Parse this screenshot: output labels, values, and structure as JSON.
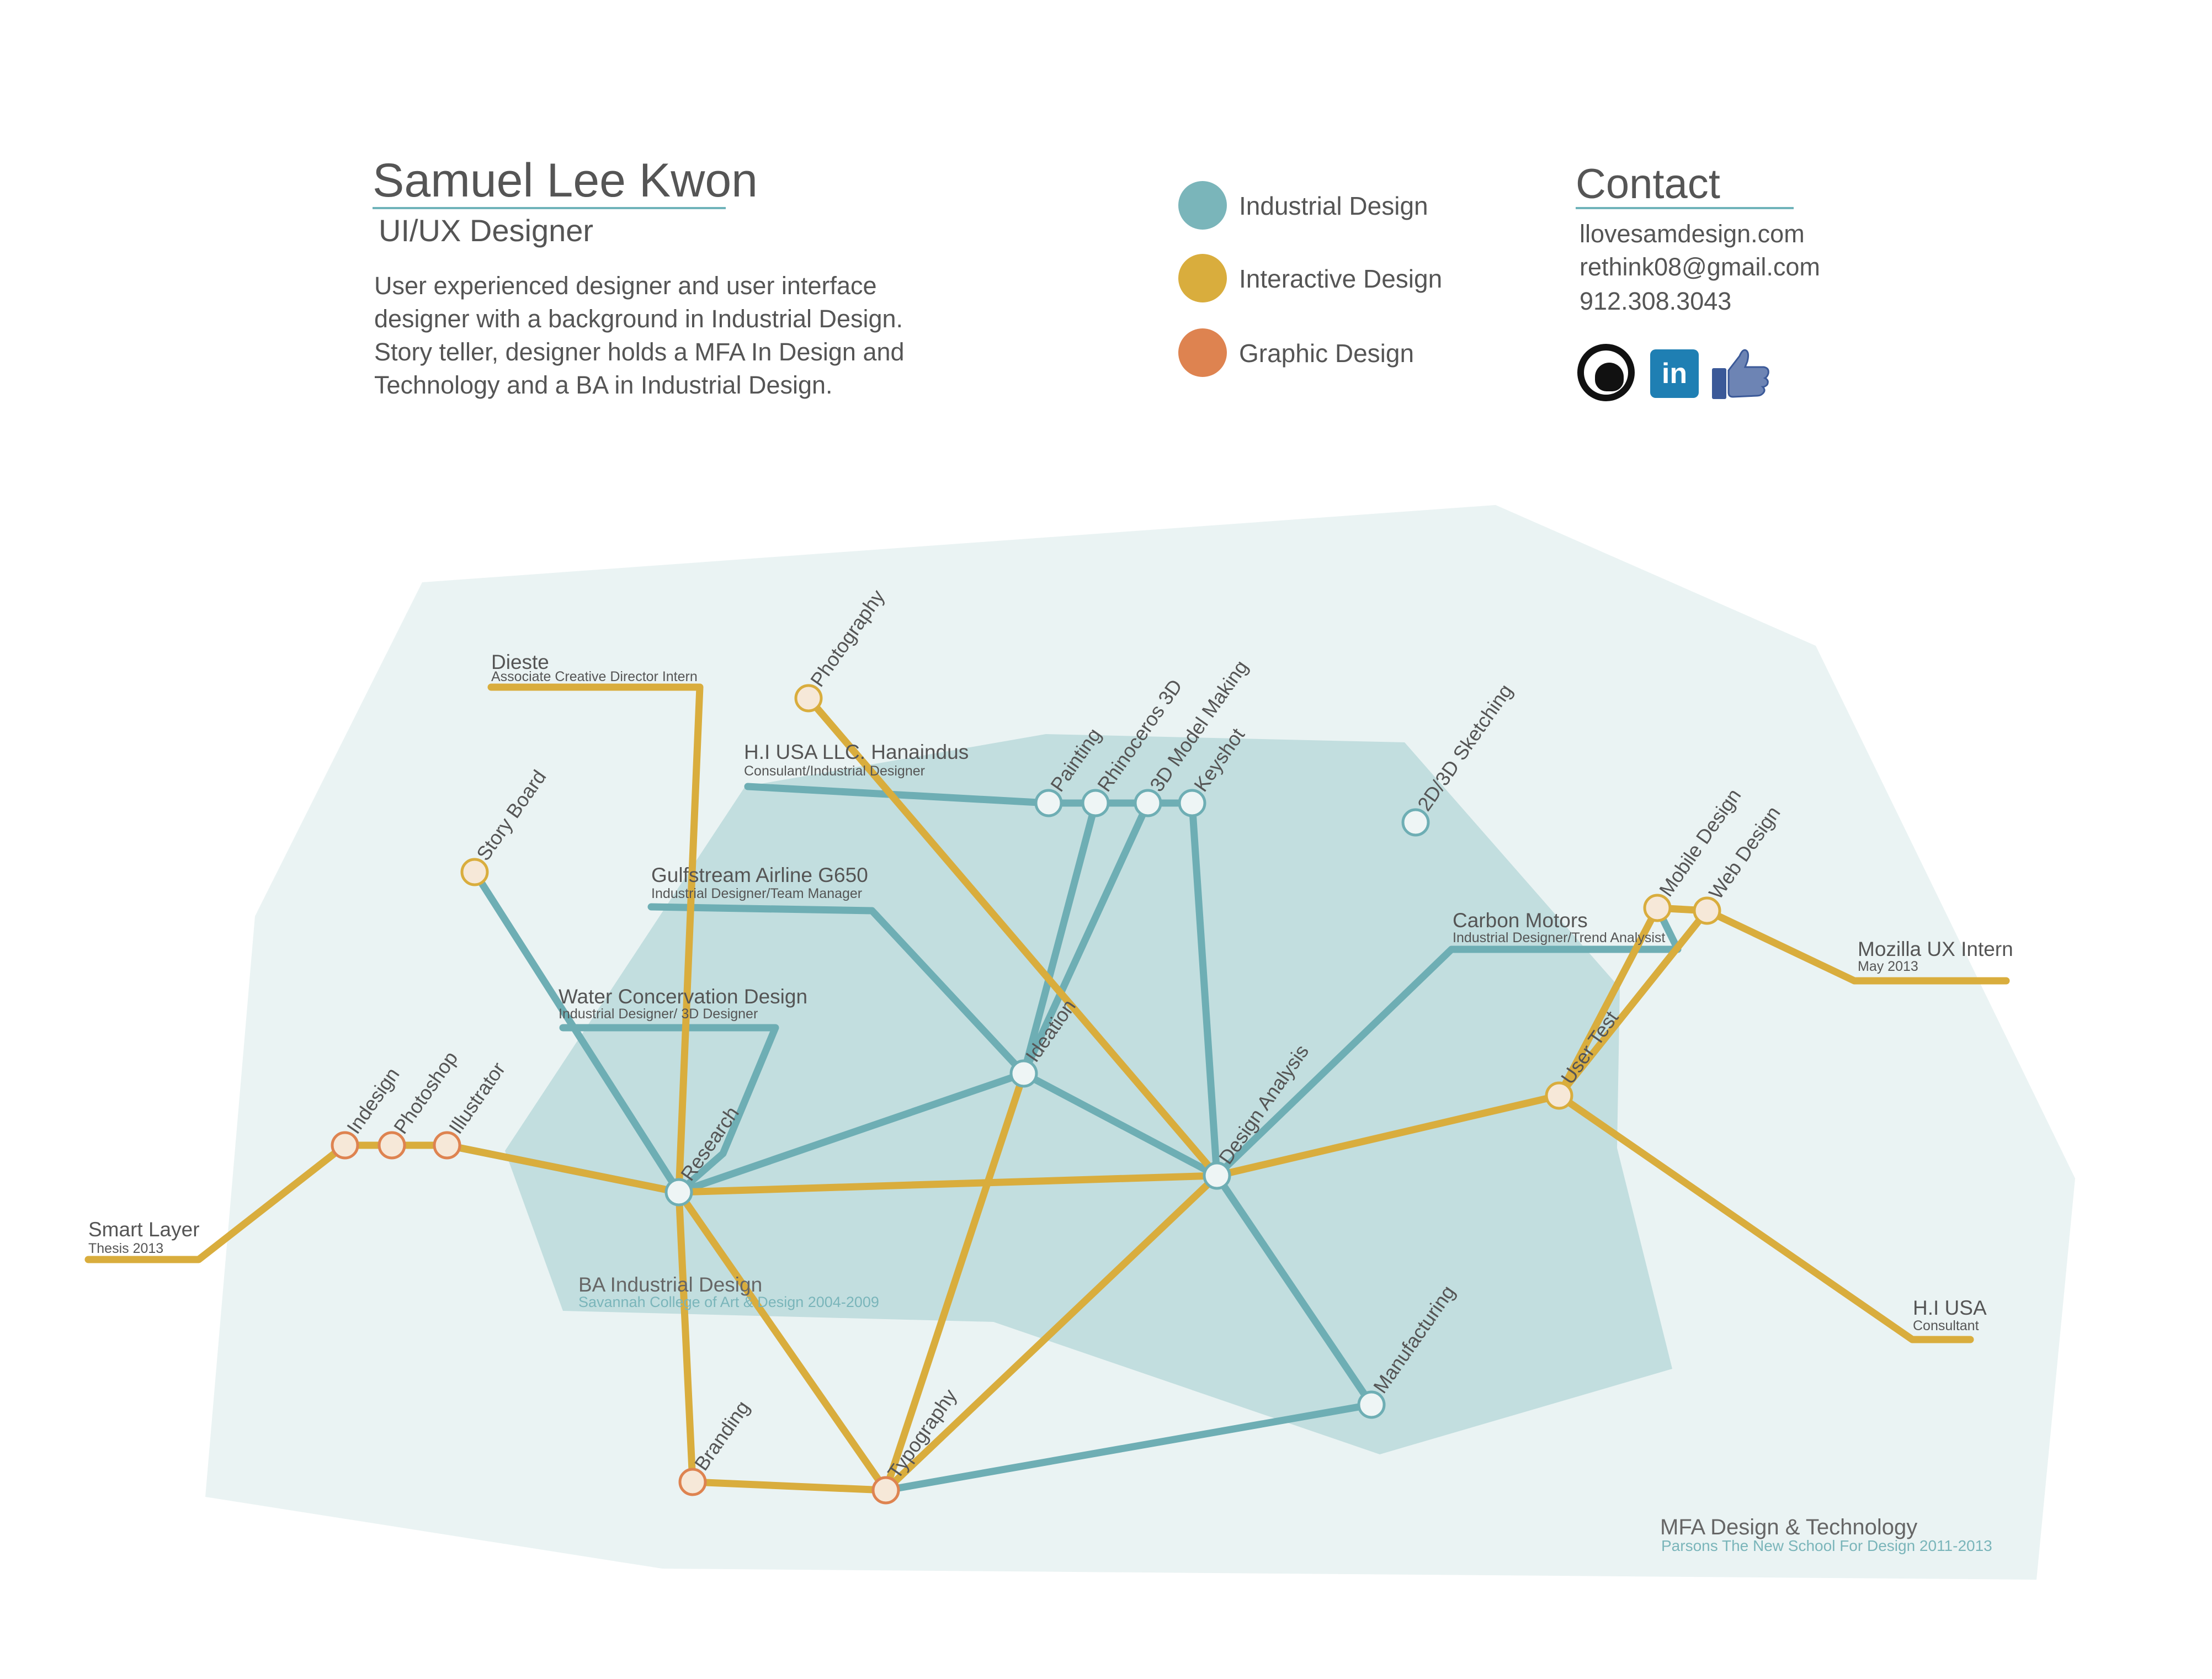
{
  "header": {
    "name": "Samuel Lee Kwon",
    "role": "UI/UX Designer",
    "bio_lines": [
      "User experienced designer and user interface",
      "designer with a background in Industrial Design.",
      "Story teller, designer holds a MFA In Design and",
      "Technology and a BA in Industrial Design."
    ]
  },
  "legend": [
    {
      "label": "Industrial Design",
      "color": "#7ab5ba"
    },
    {
      "label": "Interactive Design",
      "color": "#d9ad3d"
    },
    {
      "label": "Graphic Design",
      "color": "#de8350"
    }
  ],
  "contact": {
    "title": "Contact",
    "website": "llovesamdesign.com",
    "email": "rethink08@gmail.com",
    "phone": "912.308.3043",
    "social_icons": [
      "github-icon",
      "linkedin-icon",
      "facebook-like-icon"
    ],
    "linkedin_glyph": "in"
  },
  "colors": {
    "industrial": "#6eaeb4",
    "interactive": "#d9ad3d",
    "graphic": "#de8350",
    "outer_region": "#eaf3f3",
    "inner_region": "#c2dedf"
  },
  "regions": {
    "ba": {
      "title": "BA Industrial Design",
      "subtitle": "Savannah College of Art & Design 2004-2009"
    },
    "mfa": {
      "title": "MFA Design & Technology",
      "subtitle": "Parsons The New School For Design 2011-2013"
    }
  },
  "nodes": [
    {
      "id": "photography",
      "label": "Photography",
      "type": "interactive"
    },
    {
      "id": "storyboard",
      "label": "Story Board",
      "type": "interactive"
    },
    {
      "id": "painting",
      "label": "Painting",
      "type": "industrial"
    },
    {
      "id": "rhino",
      "label": "Rhinoceros 3D",
      "type": "industrial"
    },
    {
      "id": "model",
      "label": "3D Model Making",
      "type": "industrial"
    },
    {
      "id": "keyshot",
      "label": "Keyshot",
      "type": "industrial"
    },
    {
      "id": "sketching",
      "label": "2D/3D Sketching",
      "type": "industrial"
    },
    {
      "id": "ideation",
      "label": "Ideation",
      "type": "industrial"
    },
    {
      "id": "research",
      "label": "Research",
      "type": "industrial"
    },
    {
      "id": "analysis",
      "label": "Design Analysis",
      "type": "industrial"
    },
    {
      "id": "manufacturing",
      "label": "Manufacturing",
      "type": "industrial"
    },
    {
      "id": "usertest",
      "label": "User Test",
      "type": "interactive"
    },
    {
      "id": "mobile",
      "label": "Mobile Design",
      "type": "interactive"
    },
    {
      "id": "web",
      "label": "Web Design",
      "type": "interactive"
    },
    {
      "id": "indesign",
      "label": "Indesign",
      "type": "graphic"
    },
    {
      "id": "photoshop",
      "label": "Photoshop",
      "type": "graphic"
    },
    {
      "id": "illustrator",
      "label": "Illustrator",
      "type": "graphic"
    },
    {
      "id": "branding",
      "label": "Branding",
      "type": "graphic"
    },
    {
      "id": "typography",
      "label": "Typography",
      "type": "graphic"
    }
  ],
  "experience": [
    {
      "id": "dieste",
      "title": "Dieste",
      "subtitle": "Associate Creative Director Intern"
    },
    {
      "id": "hi-usa-llc",
      "title": "H.I USA LLC. Hanaindus",
      "subtitle": "Consulant/Industrial Designer"
    },
    {
      "id": "gulfstream",
      "title": "Gulfstream Airline G650",
      "subtitle": "Industrial Designer/Team Manager"
    },
    {
      "id": "water",
      "title": "Water Concervation Design",
      "subtitle": "Industrial Designer/ 3D Designer"
    },
    {
      "id": "carbon",
      "title": "Carbon Motors",
      "subtitle": "Industrial Designer/Trend Analysist"
    },
    {
      "id": "mozilla",
      "title": "Mozilla UX Intern",
      "subtitle": "May 2013"
    },
    {
      "id": "hi-usa",
      "title": "H.I USA",
      "subtitle": "Consultant"
    },
    {
      "id": "smart-layer",
      "title": "Smart Layer",
      "subtitle": "Thesis 2013"
    }
  ]
}
